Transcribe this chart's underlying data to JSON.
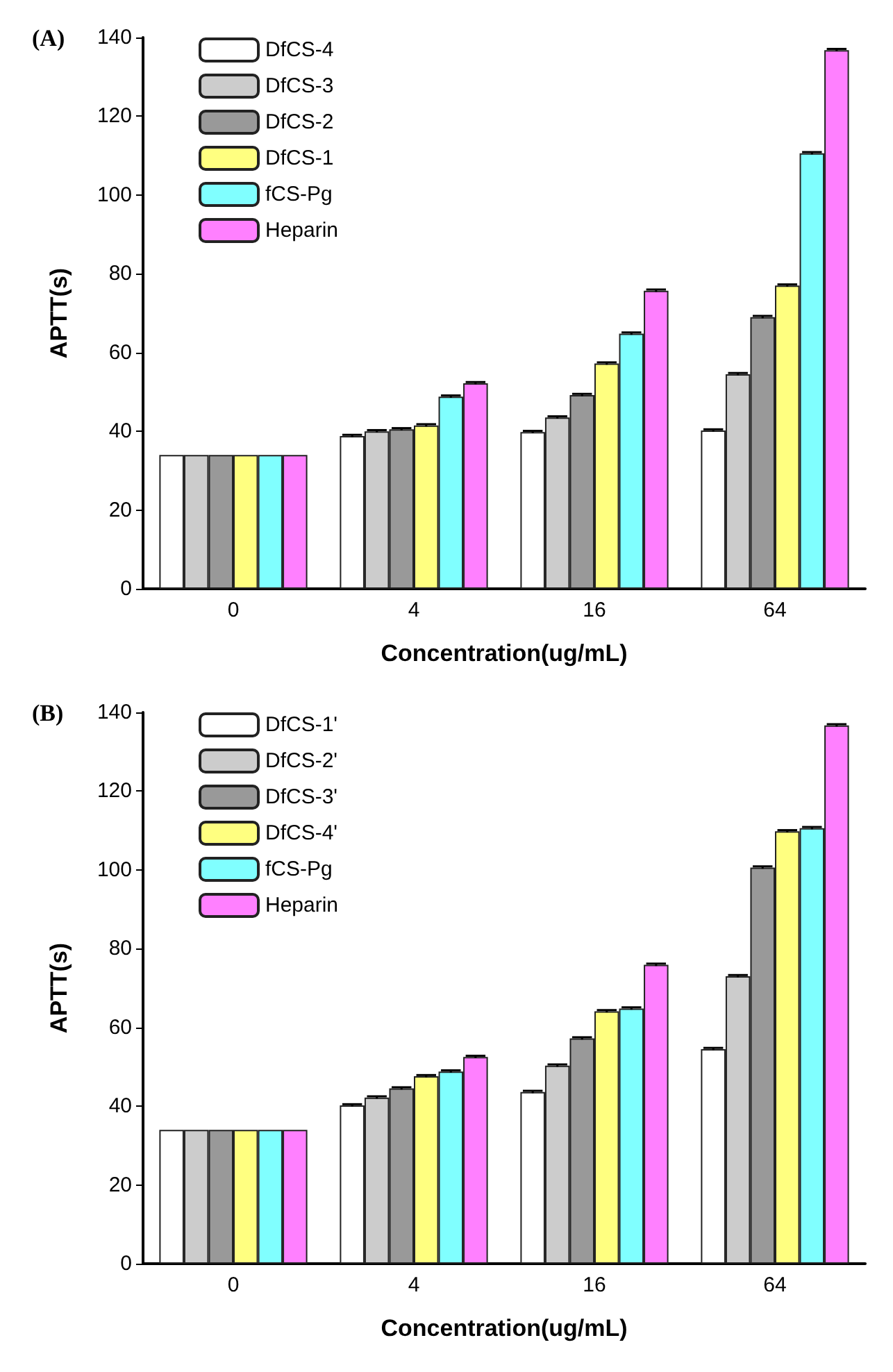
{
  "chart_data": [
    {
      "type": "bar",
      "title": "(A)",
      "xlabel": "Concentration(ug/mL)",
      "ylabel": "APTT(s)",
      "categories": [
        "0",
        "4",
        "16",
        "64"
      ],
      "ylim": [
        0,
        140
      ],
      "yticks": [
        0,
        20,
        40,
        60,
        80,
        100,
        120,
        140
      ],
      "grid": false,
      "legend": "top left",
      "series": [
        {
          "name": "DfCS-4",
          "color": "#ffffff",
          "values": [
            34,
            38.8,
            39.8,
            40.2
          ],
          "errors": [
            null,
            0.3,
            0.3,
            0.3
          ]
        },
        {
          "name": "DfCS-3",
          "color": "#cccccc",
          "values": [
            34,
            40,
            43.5,
            54.5
          ],
          "errors": [
            null,
            0.3,
            0.3,
            0.3
          ]
        },
        {
          "name": "DfCS-2",
          "color": "#999999",
          "values": [
            34,
            40.5,
            49.2,
            69
          ],
          "errors": [
            null,
            0.3,
            0.3,
            0.3
          ]
        },
        {
          "name": "DfCS-1",
          "color": "#ffff80",
          "values": [
            34,
            41.5,
            57.2,
            77
          ],
          "errors": [
            null,
            0.3,
            0.3,
            0.3
          ]
        },
        {
          "name": "fCS-Pg",
          "color": "#80ffff",
          "values": [
            34,
            48.8,
            64.8,
            110.6
          ],
          "errors": [
            null,
            0.3,
            0.3,
            0.3
          ]
        },
        {
          "name": "Heparin",
          "color": "#ff80ff",
          "values": [
            34,
            52.2,
            75.7,
            136.8
          ],
          "errors": [
            null,
            0.3,
            0.3,
            0.3
          ]
        }
      ]
    },
    {
      "type": "bar",
      "title": "(B)",
      "xlabel": "Concentration(ug/mL)",
      "ylabel": "APTT(s)",
      "categories": [
        "0",
        "4",
        "16",
        "64"
      ],
      "ylim": [
        0,
        140
      ],
      "yticks": [
        0,
        20,
        40,
        60,
        80,
        100,
        120,
        140
      ],
      "grid": false,
      "legend": "top left",
      "series": [
        {
          "name": "DfCS-1'",
          "color": "#ffffff",
          "values": [
            34,
            40.2,
            43.6,
            54.5
          ],
          "errors": [
            null,
            0.3,
            0.3,
            0.3
          ]
        },
        {
          "name": "DfCS-2'",
          "color": "#cccccc",
          "values": [
            34,
            42.2,
            50.3,
            73
          ],
          "errors": [
            null,
            0.3,
            0.3,
            0.3
          ]
        },
        {
          "name": "DfCS-3'",
          "color": "#999999",
          "values": [
            34,
            44.5,
            57.2,
            100.6
          ],
          "errors": [
            null,
            0.3,
            0.3,
            0.3
          ]
        },
        {
          "name": "DfCS-4'",
          "color": "#ffff80",
          "values": [
            34,
            47.6,
            64.1,
            109.8
          ],
          "errors": [
            null,
            0.3,
            0.3,
            0.3
          ]
        },
        {
          "name": "fCS-Pg",
          "color": "#80ffff",
          "values": [
            34,
            48.8,
            64.8,
            110.6
          ],
          "errors": [
            null,
            0.3,
            0.3,
            0.3
          ]
        },
        {
          "name": "Heparin",
          "color": "#ff80ff",
          "values": [
            34,
            52.5,
            75.9,
            136.7
          ],
          "errors": [
            null,
            0.3,
            0.3,
            0.3
          ]
        }
      ]
    }
  ]
}
